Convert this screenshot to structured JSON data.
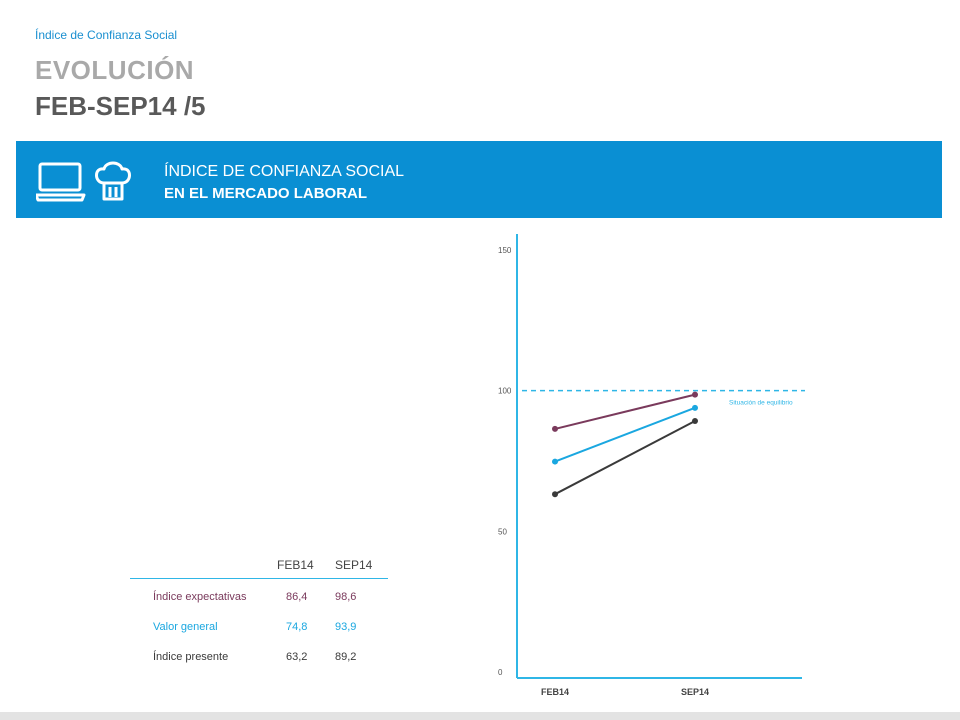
{
  "header": {
    "subtitle": "Índice de Confianza Social",
    "title_line1": "EVOLUCIÓN",
    "title_line2": "FEB-SEP14 /5"
  },
  "banner": {
    "line1": "ÍNDICE DE CONFIANZA SOCIAL",
    "line2": "EN EL MERCADO LABORAL",
    "icons": [
      "laptop-icon",
      "chef-hat-icon"
    ],
    "color": "#0a8fd3"
  },
  "table": {
    "columns": [
      "FEB14",
      "SEP14"
    ],
    "rows": [
      {
        "label": "Índice expectativas",
        "feb": "86,4",
        "sep": "98,6",
        "color": "#7a3a5c"
      },
      {
        "label": "Valor general",
        "feb": "74,8",
        "sep": "93,9",
        "color": "#1aa7e0"
      },
      {
        "label": "Índice presente",
        "feb": "63,2",
        "sep": "89,2",
        "color": "#3a3a3a"
      }
    ]
  },
  "chart_data": {
    "type": "line",
    "x": [
      "FEB14",
      "SEP14"
    ],
    "series": [
      {
        "name": "Índice expectativas",
        "values": [
          86.4,
          98.6
        ],
        "color": "#7a3a5c"
      },
      {
        "name": "Valor general",
        "values": [
          74.8,
          93.9
        ],
        "color": "#1aa7e0"
      },
      {
        "name": "Índice presente",
        "values": [
          63.2,
          89.2
        ],
        "color": "#3a3a3a"
      }
    ],
    "yticks": [
      "0",
      "50",
      "100",
      "150"
    ],
    "ylim": [
      0,
      150
    ],
    "reference_line": {
      "value": 100,
      "label": "Situación de equilibrio",
      "color": "#2fb6e6"
    },
    "axis_color": "#2fb6e6",
    "grid": false
  }
}
